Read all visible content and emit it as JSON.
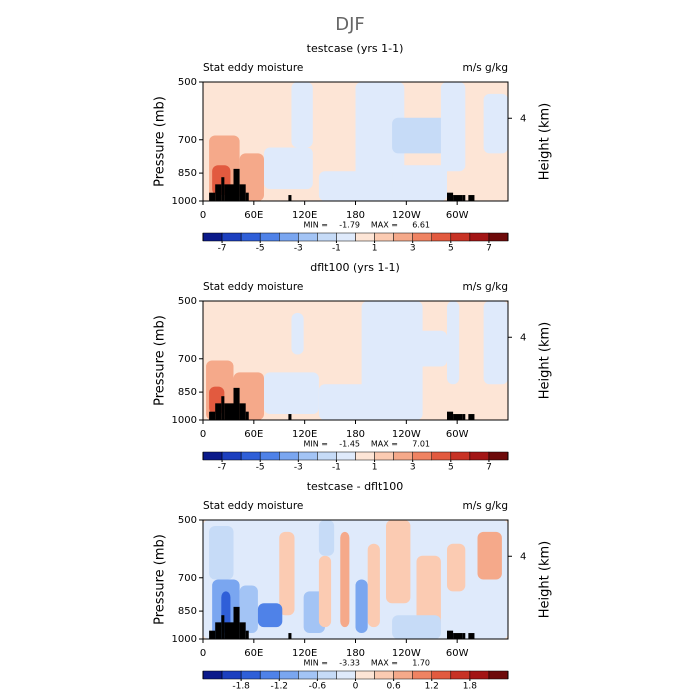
{
  "title": "DJF",
  "chart_data": [
    {
      "type": "contour",
      "title": "testcase (yrs 1-1)",
      "left_label": "Stat eddy moisture",
      "right_label": "m/s g/kg",
      "ylabel": "Pressure (mb)",
      "y2label": "Height (km)",
      "ylim": [
        1000,
        500
      ],
      "yticks": [
        500,
        700,
        850,
        1000
      ],
      "log_y": true,
      "y2ticks": [
        4
      ],
      "xlim": [
        0,
        360
      ],
      "xticks": [
        0,
        {
          "value": 60,
          "label": "60E"
        },
        {
          "value": 120,
          "label": "120E"
        },
        180,
        {
          "value": 240,
          "label": "120W"
        },
        {
          "value": 300,
          "label": "60W"
        }
      ],
      "min_label": "MIN =",
      "min": -1.79,
      "max_label": "MAX =",
      "max": 6.61,
      "clim": [
        -8,
        8
      ],
      "cticks": [
        -7,
        -5,
        -3,
        -1,
        1,
        3,
        5,
        7
      ],
      "colors": [
        "#0b1a8a",
        "#1c3fbf",
        "#2f5fd8",
        "#4f82e8",
        "#7aa6f0",
        "#a3c4f5",
        "#c6dbf7",
        "#dfeafb",
        "#fde5d6",
        "#fbcbb2",
        "#f5a98a",
        "#ef8362",
        "#e25a3f",
        "#c83325",
        "#a31515",
        "#6e0a0a"
      ]
    },
    {
      "type": "contour",
      "title": "dflt100 (yrs 1-1)",
      "left_label": "Stat eddy moisture",
      "right_label": "m/s g/kg",
      "ylabel": "Pressure (mb)",
      "y2label": "Height (km)",
      "ylim": [
        1000,
        500
      ],
      "yticks": [
        500,
        700,
        850,
        1000
      ],
      "log_y": true,
      "y2ticks": [
        4
      ],
      "xlim": [
        0,
        360
      ],
      "xticks": [
        0,
        {
          "value": 60,
          "label": "60E"
        },
        {
          "value": 120,
          "label": "120E"
        },
        180,
        {
          "value": 240,
          "label": "120W"
        },
        {
          "value": 300,
          "label": "60W"
        }
      ],
      "min_label": "MIN =",
      "min": -1.45,
      "max_label": "MAX =",
      "max": 7.01,
      "clim": [
        -8,
        8
      ],
      "cticks": [
        -7,
        -5,
        -3,
        -1,
        1,
        3,
        5,
        7
      ],
      "colors": [
        "#0b1a8a",
        "#1c3fbf",
        "#2f5fd8",
        "#4f82e8",
        "#7aa6f0",
        "#a3c4f5",
        "#c6dbf7",
        "#dfeafb",
        "#fde5d6",
        "#fbcbb2",
        "#f5a98a",
        "#ef8362",
        "#e25a3f",
        "#c83325",
        "#a31515",
        "#6e0a0a"
      ]
    },
    {
      "type": "contour",
      "title": "testcase - dflt100",
      "left_label": "Stat eddy moisture",
      "right_label": "m/s g/kg",
      "ylabel": "Pressure (mb)",
      "y2label": "Height (km)",
      "ylim": [
        1000,
        500
      ],
      "yticks": [
        500,
        700,
        850,
        1000
      ],
      "log_y": true,
      "y2ticks": [
        4
      ],
      "xlim": [
        0,
        360
      ],
      "xticks": [
        0,
        {
          "value": 60,
          "label": "60E"
        },
        {
          "value": 120,
          "label": "120E"
        },
        180,
        {
          "value": 240,
          "label": "120W"
        },
        {
          "value": 300,
          "label": "60W"
        }
      ],
      "min_label": "MIN =",
      "min": -3.33,
      "max_label": "MAX =",
      "max": 1.7,
      "max_text": "1.70",
      "clim": [
        -2.4,
        2.4
      ],
      "cticks": [
        -1.8,
        -1.2,
        -0.6,
        0,
        0.6,
        1.2,
        1.8
      ],
      "colors": [
        "#0b1a8a",
        "#1c3fbf",
        "#2f5fd8",
        "#4f82e8",
        "#7aa6f0",
        "#a3c4f5",
        "#c6dbf7",
        "#dfeafb",
        "#fde5d6",
        "#fbcbb2",
        "#f5a98a",
        "#ef8362",
        "#e25a3f",
        "#c83325",
        "#a31515",
        "#6e0a0a"
      ]
    }
  ]
}
